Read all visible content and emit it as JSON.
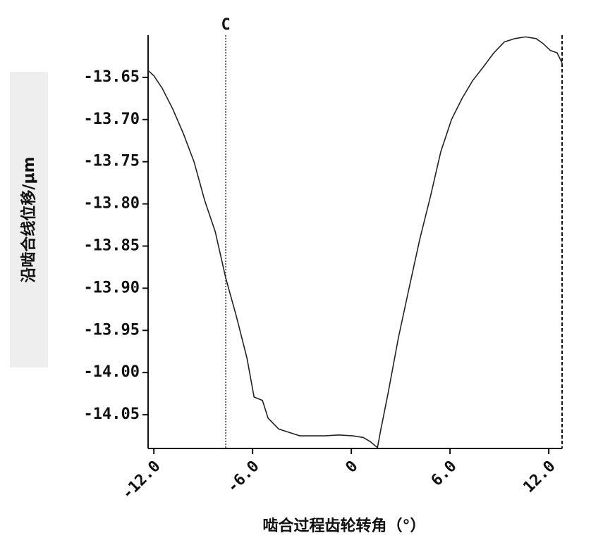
{
  "chart_data": {
    "type": "line",
    "x_label": "啮合过程齿轮转角（°）",
    "y_label": "沿啮合线位移/μm",
    "annotation": "C",
    "annotation_x": -7.63,
    "color": "#222222",
    "x": [
      -12.34,
      -12.0,
      -11.49,
      -10.84,
      -10.2,
      -9.56,
      -8.91,
      -8.27,
      -7.63,
      -6.99,
      -6.34,
      -5.91,
      -5.4,
      -5.06,
      -4.41,
      -3.77,
      -3.13,
      -2.49,
      -1.63,
      -0.77,
      0.09,
      0.73,
      1.16,
      1.59,
      1.8,
      2.23,
      2.87,
      3.51,
      4.16,
      4.8,
      5.44,
      6.09,
      6.73,
      7.37,
      8.01,
      8.66,
      9.3,
      9.94,
      10.59,
      11.23,
      11.66,
      12.09,
      12.51,
      12.81
    ],
    "values": [
      -13.642,
      -13.648,
      -13.663,
      -13.688,
      -13.717,
      -13.75,
      -13.796,
      -13.833,
      -13.888,
      -13.933,
      -13.983,
      -14.029,
      -14.033,
      -14.054,
      -14.067,
      -14.071,
      -14.075,
      -14.075,
      -14.075,
      -14.074,
      -14.075,
      -14.077,
      -14.082,
      -14.089,
      -14.067,
      -14.025,
      -13.958,
      -13.9,
      -13.842,
      -13.792,
      -13.738,
      -13.7,
      -13.675,
      -13.654,
      -13.638,
      -13.621,
      -13.608,
      -13.604,
      -13.602,
      -13.604,
      -13.61,
      -13.618,
      -13.621,
      -13.633
    ],
    "xlim": [
      -12.35,
      12.81
    ],
    "ylim": [
      -14.09,
      -13.6
    ],
    "xticks": [
      {
        "value": -12,
        "label": "-12.0"
      },
      {
        "value": -6,
        "label": "-6.0"
      },
      0,
      {
        "value": 6,
        "label": "6.0"
      },
      {
        "value": 12,
        "label": "12.0"
      }
    ],
    "yticks": [
      -13.65,
      {
        "value": -13.7,
        "label": "-13.70"
      },
      -13.75,
      {
        "value": -13.8,
        "label": "-13.80"
      },
      -13.85,
      {
        "value": -13.9,
        "label": "-13.90"
      },
      -13.95,
      {
        "value": -14,
        "label": "-14.00"
      },
      -14.05
    ]
  }
}
